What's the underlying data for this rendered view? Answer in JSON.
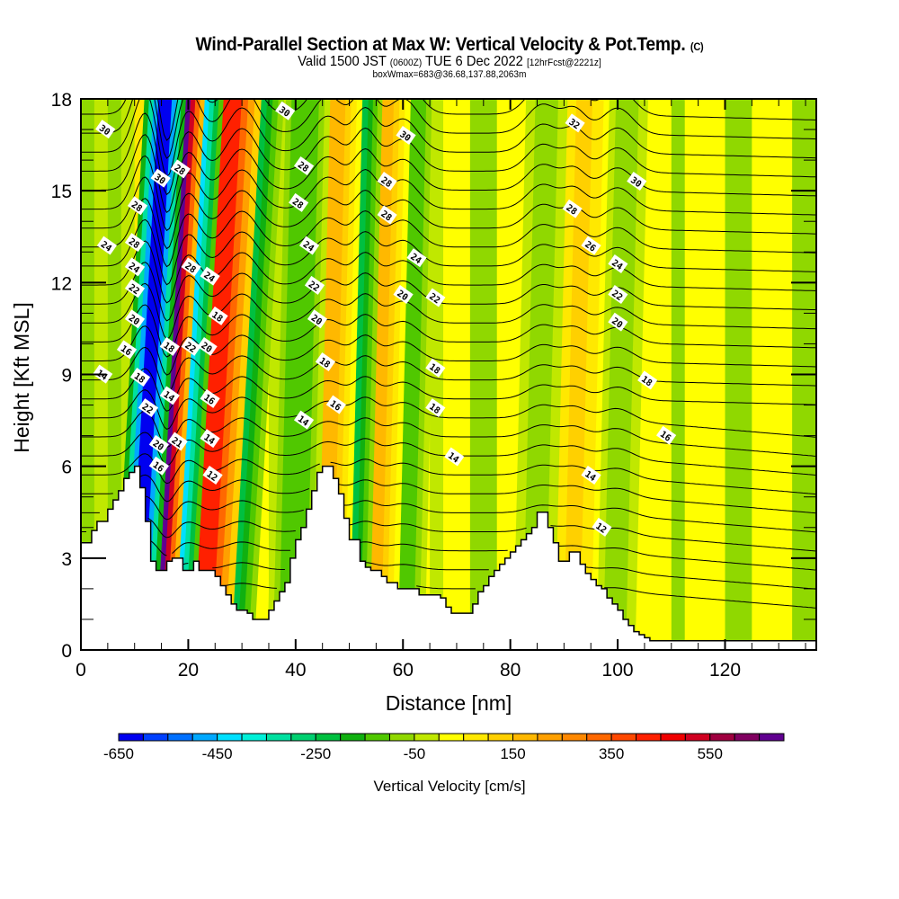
{
  "header": {
    "title": "Wind-Parallel Section at Max W: Vertical Velocity & Pot.Temp.",
    "copyright": "(C)",
    "valid_prefix": "Valid 1500 JST",
    "valid_utc": "(0600Z)",
    "valid_date": "TUE 6 Dec 2022",
    "forecast": "[12hrFcst@2221z]",
    "box_info": "boxWmax=683@36.68,137.88,2063m"
  },
  "chart_data": {
    "type": "heatmap",
    "title": "Wind-Parallel Section at Max W: Vertical Velocity & Pot.Temp.",
    "xlabel": "Distance [nm]",
    "ylabel": "Height [Kft MSL]",
    "xlim": [
      0,
      137
    ],
    "ylim": [
      0,
      18
    ],
    "xticks": [
      0,
      20,
      40,
      60,
      80,
      100,
      120
    ],
    "xtick_labels": [
      "0",
      "20",
      "40",
      "60",
      "80",
      "100",
      "120"
    ],
    "x_minor_step": 5,
    "yticks": [
      0,
      3,
      6,
      9,
      12,
      15,
      18
    ],
    "ytick_labels": [
      "0",
      "3",
      "6",
      "9",
      "12",
      "15",
      "18"
    ],
    "y_minor_step": 1,
    "grid": false,
    "colorbar": {
      "title": "Vertical Velocity [cm/s]",
      "placement": "bottom",
      "bounds": [
        -650,
        700
      ],
      "step": 50,
      "tick_values": [
        -650,
        -450,
        -250,
        -50,
        150,
        350,
        550
      ],
      "tick_labels": [
        "-650",
        "-450",
        "-250",
        "-50",
        "150",
        "350",
        "550"
      ],
      "colors": [
        "#0000f0",
        "#0040ff",
        "#0070ff",
        "#00a8ff",
        "#00e0ff",
        "#00f0d8",
        "#00e0a0",
        "#00d070",
        "#00c040",
        "#10b010",
        "#50c800",
        "#90d800",
        "#c0e800",
        "#ffff00",
        "#ffe800",
        "#ffd000",
        "#ffb800",
        "#ffa000",
        "#ff8800",
        "#ff6800",
        "#ff4800",
        "#ff2000",
        "#f00000",
        "#d00020",
        "#a00040",
        "#800060",
        "#600090"
      ]
    },
    "terrain_kft": {
      "x": [
        0,
        2,
        3,
        5,
        6,
        7,
        8,
        9,
        10,
        11,
        12,
        13,
        14,
        15,
        16,
        17,
        18,
        19,
        20,
        21,
        22,
        23,
        24,
        25,
        26,
        27,
        28,
        29,
        30,
        31,
        32,
        33,
        34,
        35,
        36,
        37,
        38,
        39,
        40,
        41,
        42,
        43,
        44,
        45,
        46,
        47,
        48,
        49,
        50,
        51,
        52,
        53,
        54,
        55,
        56,
        57,
        58,
        59,
        60,
        61,
        62,
        63,
        64,
        65,
        66,
        67,
        68,
        69,
        70,
        71,
        72,
        73,
        74,
        75,
        76,
        77,
        78,
        79,
        80,
        81,
        82,
        83,
        84,
        85,
        86,
        87,
        88,
        89,
        90,
        91,
        92,
        93,
        94,
        95,
        96,
        97,
        98,
        99,
        100,
        101,
        102,
        103,
        104,
        105,
        106,
        107,
        108,
        137
      ],
      "y": [
        3.5,
        3.9,
        4.2,
        4.6,
        4.9,
        5.2,
        5.6,
        5.8,
        6.0,
        5.3,
        4.2,
        2.9,
        2.6,
        2.6,
        2.9,
        3.0,
        3.0,
        2.6,
        2.6,
        2.9,
        2.6,
        2.6,
        2.6,
        2.4,
        2.1,
        1.8,
        1.5,
        1.3,
        1.3,
        1.2,
        1.0,
        1.0,
        1.0,
        1.3,
        1.6,
        1.9,
        2.2,
        3.0,
        3.6,
        4.0,
        4.6,
        5.2,
        5.8,
        6.0,
        6.0,
        5.6,
        5.1,
        4.3,
        3.6,
        3.6,
        2.9,
        2.7,
        2.6,
        2.6,
        2.4,
        2.2,
        2.2,
        2.0,
        2.0,
        2.0,
        2.0,
        1.8,
        1.8,
        1.8,
        1.8,
        1.7,
        1.4,
        1.2,
        1.2,
        1.2,
        1.2,
        1.5,
        1.9,
        2.1,
        2.4,
        2.6,
        2.8,
        3.0,
        3.2,
        3.4,
        3.6,
        3.8,
        4.0,
        4.5,
        4.5,
        4.0,
        3.5,
        2.9,
        2.9,
        3.2,
        3.2,
        2.8,
        2.5,
        2.3,
        2.1,
        2.0,
        1.7,
        1.5,
        1.3,
        1.0,
        0.8,
        0.6,
        0.5,
        0.4,
        0.3,
        0.3,
        0.3,
        0.3
      ]
    },
    "vertical_velocity_bands": [
      {
        "x_center": 11.5,
        "value": -650,
        "width_nm": 2.5
      },
      {
        "x_center": 15.0,
        "value": 683,
        "width_nm": 2.5
      },
      {
        "x_center": 18.5,
        "value": -450,
        "width_nm": 2.5
      },
      {
        "x_center": 24.0,
        "value": 400,
        "width_nm": 3.5
      },
      {
        "x_center": 29.0,
        "value": -250,
        "width_nm": 3.0
      },
      {
        "x_center": 40.0,
        "value": -150,
        "width_nm": 3.0
      },
      {
        "x_center": 46.0,
        "value": 150,
        "width_nm": 3.0
      },
      {
        "x_center": 50.5,
        "value": -250,
        "width_nm": 2.5
      },
      {
        "x_center": 55.0,
        "value": 150,
        "width_nm": 3.0
      },
      {
        "x_center": 60.0,
        "value": -150,
        "width_nm": 3.0
      },
      {
        "x_center": 85.0,
        "value": -100,
        "width_nm": 2.5
      },
      {
        "x_center": 92.0,
        "value": 100,
        "width_nm": 3.0
      },
      {
        "x_center": 100.0,
        "value": -100,
        "width_nm": 2.5
      }
    ],
    "potential_temperature": {
      "units": "contour label (C)",
      "levels": [
        12,
        14,
        16,
        18,
        20,
        22,
        24,
        26,
        28,
        30,
        32
      ],
      "contour_labels": [
        {
          "text": "30",
          "x": 4.5,
          "y": 17.0
        },
        {
          "text": "30",
          "x": 14.8,
          "y": 15.4
        },
        {
          "text": "28",
          "x": 18.5,
          "y": 15.7
        },
        {
          "text": "28",
          "x": 10.5,
          "y": 14.5
        },
        {
          "text": "28",
          "x": 10.0,
          "y": 13.3
        },
        {
          "text": "24",
          "x": 4.8,
          "y": 13.2
        },
        {
          "text": "24",
          "x": 10.0,
          "y": 12.5
        },
        {
          "text": "22",
          "x": 10.0,
          "y": 11.8
        },
        {
          "text": "20",
          "x": 10.0,
          "y": 10.8
        },
        {
          "text": "16",
          "x": 8.5,
          "y": 9.8
        },
        {
          "text": "14",
          "x": 4.0,
          "y": 9.0
        },
        {
          "text": "18",
          "x": 11.0,
          "y": 8.9
        },
        {
          "text": "22",
          "x": 12.5,
          "y": 7.9
        },
        {
          "text": "20",
          "x": 14.5,
          "y": 6.7
        },
        {
          "text": "16",
          "x": 14.5,
          "y": 6.0
        },
        {
          "text": "18",
          "x": 16.5,
          "y": 9.9
        },
        {
          "text": "14",
          "x": 16.5,
          "y": 8.3
        },
        {
          "text": "21",
          "x": 18.0,
          "y": 6.8
        },
        {
          "text": "28",
          "x": 20.5,
          "y": 12.5
        },
        {
          "text": "22",
          "x": 20.5,
          "y": 9.9
        },
        {
          "text": "24",
          "x": 24.0,
          "y": 12.2
        },
        {
          "text": "20",
          "x": 23.5,
          "y": 9.9
        },
        {
          "text": "18",
          "x": 25.5,
          "y": 10.9
        },
        {
          "text": "16",
          "x": 24.0,
          "y": 8.2
        },
        {
          "text": "14",
          "x": 24.0,
          "y": 6.9
        },
        {
          "text": "12",
          "x": 24.5,
          "y": 5.7
        },
        {
          "text": "30",
          "x": 38.0,
          "y": 17.6
        },
        {
          "text": "28",
          "x": 41.5,
          "y": 15.8
        },
        {
          "text": "28",
          "x": 40.5,
          "y": 14.6
        },
        {
          "text": "24",
          "x": 42.5,
          "y": 13.2
        },
        {
          "text": "22",
          "x": 43.5,
          "y": 11.9
        },
        {
          "text": "20",
          "x": 44.0,
          "y": 10.8
        },
        {
          "text": "18",
          "x": 45.5,
          "y": 9.4
        },
        {
          "text": "16",
          "x": 47.5,
          "y": 8.0
        },
        {
          "text": "14",
          "x": 41.5,
          "y": 7.5
        },
        {
          "text": "30",
          "x": 60.5,
          "y": 16.8
        },
        {
          "text": "28",
          "x": 57.0,
          "y": 15.3
        },
        {
          "text": "28",
          "x": 57.0,
          "y": 14.2
        },
        {
          "text": "24",
          "x": 62.5,
          "y": 12.8
        },
        {
          "text": "20",
          "x": 60.0,
          "y": 11.6
        },
        {
          "text": "22",
          "x": 66.0,
          "y": 11.5
        },
        {
          "text": "18",
          "x": 66.0,
          "y": 9.2
        },
        {
          "text": "18",
          "x": 66.0,
          "y": 7.9
        },
        {
          "text": "14",
          "x": 69.5,
          "y": 6.3
        },
        {
          "text": "32",
          "x": 92.0,
          "y": 17.2
        },
        {
          "text": "30",
          "x": 103.5,
          "y": 15.3
        },
        {
          "text": "28",
          "x": 91.5,
          "y": 14.4
        },
        {
          "text": "26",
          "x": 95.0,
          "y": 13.2
        },
        {
          "text": "24",
          "x": 100.0,
          "y": 12.6
        },
        {
          "text": "22",
          "x": 100.0,
          "y": 11.6
        },
        {
          "text": "20",
          "x": 100.0,
          "y": 10.7
        },
        {
          "text": "18",
          "x": 105.5,
          "y": 8.8
        },
        {
          "text": "16",
          "x": 109.0,
          "y": 7.0
        },
        {
          "text": "14",
          "x": 95.0,
          "y": 5.7
        },
        {
          "text": "12",
          "x": 97.0,
          "y": 4.0
        }
      ]
    }
  }
}
